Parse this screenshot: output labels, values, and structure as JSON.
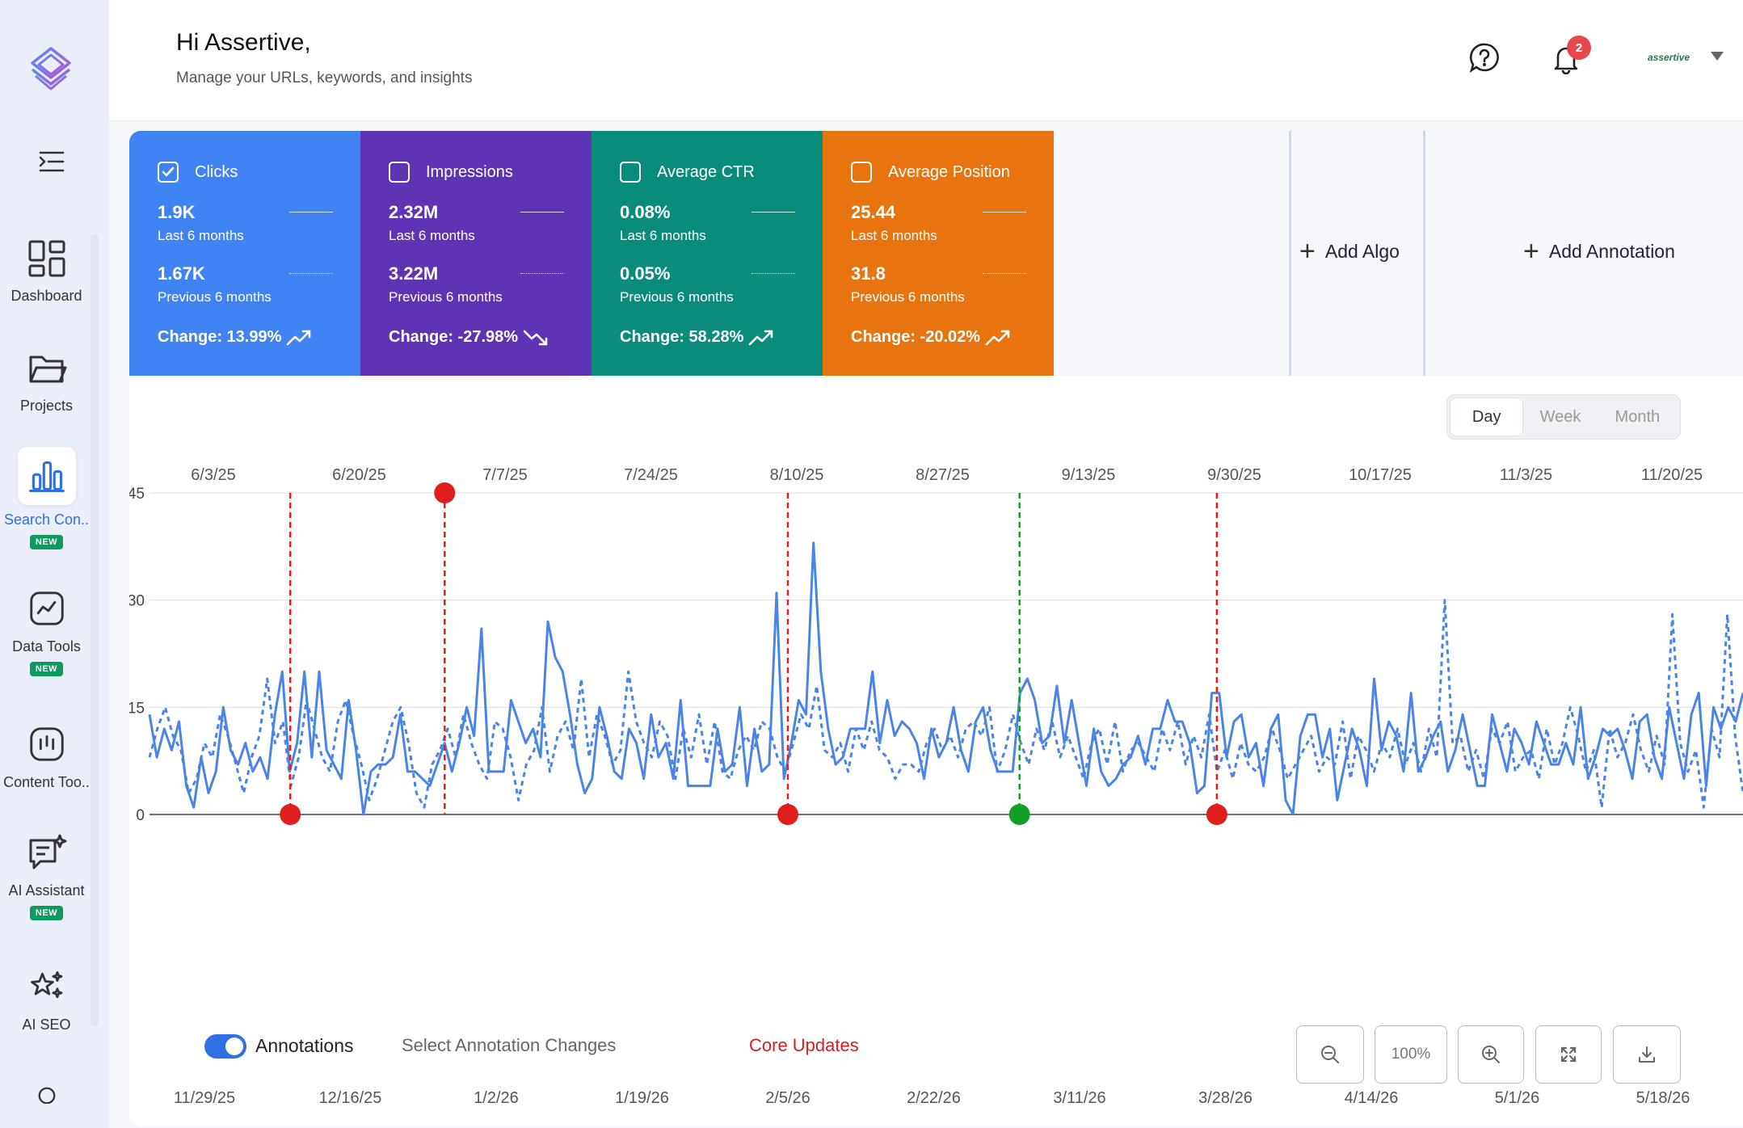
{
  "header": {
    "greeting": "Hi Assertive,",
    "subtitle": "Manage your URLs, keywords, and insights",
    "notification_count": "2",
    "account_name": "assertive"
  },
  "sidebar": {
    "items": [
      {
        "label": "Dashboard",
        "icon": "dashboard-icon",
        "new": false,
        "active": false
      },
      {
        "label": "Projects",
        "icon": "folder-icon",
        "new": false,
        "active": false
      },
      {
        "label": "Search Con..",
        "icon": "bar-chart-icon",
        "new": true,
        "active": true
      },
      {
        "label": "Data Tools",
        "icon": "line-chart-icon",
        "new": true,
        "active": false
      },
      {
        "label": "Content Too..",
        "icon": "content-icon",
        "new": false,
        "active": false
      },
      {
        "label": "AI Assistant",
        "icon": "chat-sparkle-icon",
        "new": true,
        "active": false
      },
      {
        "label": "AI SEO",
        "icon": "stars-icon",
        "new": false,
        "active": false
      }
    ],
    "new_badge": "NEW"
  },
  "metrics": [
    {
      "name": "Clicks",
      "checked": true,
      "current": "1.9K",
      "current_label": "Last 6 months",
      "previous": "1.67K",
      "previous_label": "Previous 6 months",
      "change": "Change: 13.99%",
      "trend": "up",
      "color": "#3f84f2"
    },
    {
      "name": "Impressions",
      "checked": false,
      "current": "2.32M",
      "current_label": "Last 6 months",
      "previous": "3.22M",
      "previous_label": "Previous 6 months",
      "change": "Change: -27.98%",
      "trend": "down",
      "color": "#5f34b4"
    },
    {
      "name": "Average CTR",
      "checked": false,
      "current": "0.08%",
      "current_label": "Last 6 months",
      "previous": "0.05%",
      "previous_label": "Previous 6 months",
      "change": "Change: 58.28%",
      "trend": "up",
      "color": "#0a8c7a"
    },
    {
      "name": "Average Position",
      "checked": false,
      "current": "25.44",
      "current_label": "Last 6 months",
      "previous": "31.8",
      "previous_label": "Previous 6 months",
      "change": "Change: -20.02%",
      "trend": "up",
      "color": "#e8740f"
    }
  ],
  "actions": {
    "add_algo": "Add Algo",
    "add_annotation": "Add Annotation"
  },
  "period": {
    "options": [
      "Day",
      "Week",
      "Month"
    ],
    "selected": "Day"
  },
  "controls": {
    "annotations_label": "Annotations",
    "annotations_on": true,
    "select_changes": "Select Annotation Changes",
    "core_updates": "Core Updates",
    "zoom_level": "100%"
  },
  "chart_data": {
    "type": "line",
    "y_ticks": [
      "0",
      "15",
      "30",
      "45"
    ],
    "ylim": [
      0,
      45
    ],
    "x_top_ticks": [
      "6/3/25",
      "6/20/25",
      "7/7/25",
      "7/24/25",
      "8/10/25",
      "8/27/25",
      "9/13/25",
      "9/30/25",
      "10/17/25",
      "11/3/25",
      "11/20/25"
    ],
    "x_bottom_ticks": [
      "11/29/25",
      "12/16/25",
      "1/2/26",
      "1/19/26",
      "2/5/26",
      "2/22/26",
      "3/11/26",
      "3/28/26",
      "4/14/26",
      "5/1/26",
      "5/18/26"
    ],
    "series": [
      {
        "style": "solid",
        "color": "#4a84e6",
        "values": [
          14,
          8,
          12,
          9,
          13,
          4,
          1,
          8,
          3,
          6,
          15,
          9,
          7,
          10,
          6,
          8,
          5,
          14,
          20,
          6,
          10,
          20,
          8,
          20,
          9,
          7,
          5,
          16,
          9,
          0,
          6,
          7,
          7,
          8,
          14,
          6,
          6,
          5,
          4,
          7,
          10,
          6,
          10,
          15,
          11,
          26,
          6,
          6,
          6,
          16,
          13,
          10,
          12,
          8,
          27,
          22,
          20,
          14,
          7,
          3,
          5,
          15,
          11,
          6,
          5,
          12,
          10,
          5,
          14,
          8,
          10,
          5,
          16,
          4,
          4,
          4,
          4,
          12,
          6,
          7,
          15,
          4,
          12,
          6,
          7,
          31,
          5,
          10,
          16,
          14,
          38,
          20,
          12,
          7,
          8,
          12,
          12,
          12,
          20,
          10,
          16,
          11,
          13,
          12,
          10,
          5,
          12,
          8,
          10,
          15,
          9,
          6,
          13,
          15,
          9,
          6,
          6,
          6,
          17,
          19,
          16,
          10,
          11,
          18,
          10,
          16,
          10,
          4,
          12,
          6,
          4,
          5,
          7,
          8,
          11,
          7,
          12,
          12,
          16,
          13,
          13,
          10,
          3,
          4,
          17,
          17,
          8,
          13,
          14,
          8,
          10,
          4,
          12,
          14,
          2,
          0,
          11,
          14,
          14,
          8,
          12,
          2,
          7,
          12,
          9,
          4,
          19,
          9,
          13,
          11,
          6,
          17,
          6,
          8,
          11,
          13,
          6,
          9,
          14,
          9,
          4,
          4,
          14,
          10,
          6,
          12,
          10,
          7,
          13,
          10,
          7,
          7,
          10,
          7,
          15,
          5,
          8,
          12,
          11,
          12,
          9,
          5,
          13,
          14,
          8,
          5,
          15,
          10,
          5,
          14,
          17,
          4,
          15,
          12,
          15,
          13,
          17
        ]
      },
      {
        "style": "dashed",
        "color": "#4a84e6",
        "values": [
          8,
          12,
          15,
          11,
          9,
          3,
          5,
          10,
          8,
          14,
          11,
          7,
          3,
          8,
          11,
          19,
          10,
          13,
          4,
          8,
          16,
          12,
          8,
          6,
          13,
          16,
          11,
          7,
          2,
          5,
          9,
          13,
          15,
          10,
          3,
          1,
          7,
          9,
          12,
          8,
          14,
          10,
          7,
          5,
          13,
          12,
          8,
          2,
          7,
          9,
          15,
          6,
          11,
          13,
          9,
          19,
          8,
          14,
          11,
          7,
          9,
          20,
          13,
          10,
          8,
          13,
          11,
          5,
          12,
          8,
          14,
          7,
          13,
          6,
          5,
          9,
          11,
          9,
          13,
          12,
          8,
          6,
          10,
          14,
          12,
          18,
          9,
          8,
          10,
          6,
          12,
          9,
          13,
          9,
          8,
          5,
          7,
          7,
          6,
          10,
          12,
          9,
          11,
          8,
          12,
          13,
          11,
          15,
          6,
          9,
          14,
          10,
          7,
          12,
          9,
          13,
          8,
          11,
          8,
          5,
          10,
          12,
          7,
          13,
          6,
          9,
          10,
          8,
          6,
          12,
          9,
          13,
          7,
          11,
          8,
          14,
          6,
          9,
          5,
          10,
          7,
          6,
          8,
          12,
          9,
          5,
          7,
          9,
          11,
          6,
          8,
          7,
          13,
          5,
          11,
          9,
          6,
          10,
          8,
          12,
          7,
          10,
          6,
          12,
          8,
          30,
          10,
          11,
          6,
          9,
          5,
          12,
          10,
          13,
          6,
          8,
          9,
          5,
          12,
          7,
          10,
          15,
          11,
          6,
          9,
          1,
          12,
          8,
          10,
          14,
          9,
          6,
          11,
          7,
          28,
          10,
          6,
          9,
          1,
          12,
          8,
          28,
          11,
          3
        ]
      }
    ],
    "annotations": [
      {
        "date": "12/9/25",
        "color": "#e01e1e",
        "marker": "bottom"
      },
      {
        "date": "12/27/25",
        "color": "#e01e1e",
        "marker": "top"
      },
      {
        "date": "2/5/26",
        "color": "#e01e1e",
        "marker": "bottom"
      },
      {
        "date": "3/4/26",
        "color": "#12a028",
        "marker": "bottom"
      },
      {
        "date": "3/27/26",
        "color": "#e01e1e",
        "marker": "bottom"
      }
    ]
  }
}
